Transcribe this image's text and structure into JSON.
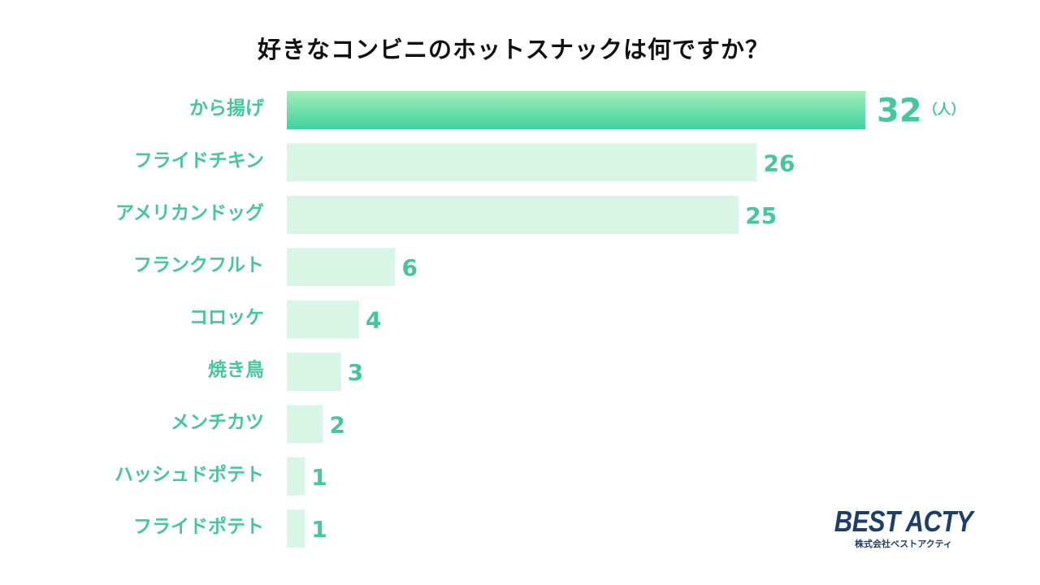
{
  "chart_data": {
    "type": "bar",
    "orientation": "horizontal",
    "title": "好きなコンビニのホットスナックは何ですか？",
    "categories": [
      "から揚げ",
      "フライドチキン",
      "アメリカンドッグ",
      "フランクフルト",
      "コロッケ",
      "焼き鳥",
      "メンチカツ",
      "ハッシュドポテト",
      "フライドポテト"
    ],
    "values": [
      32,
      26,
      25,
      6,
      4,
      3,
      2,
      1,
      1
    ],
    "unit": "（人）",
    "xlim": [
      0,
      32
    ],
    "grid": false,
    "legend": "none"
  },
  "colors": {
    "top_bar_gradient": [
      "#a3efb9",
      "#3fd29e"
    ],
    "bar": "#d7f6e5",
    "category_text": "#45c79b",
    "value_text": "#45c79b",
    "title_text": "#111111",
    "brand_primary": "#1d3e6b"
  },
  "brand": {
    "logo": "BEST ACTY",
    "subtitle": "株式会社ベストアクティ"
  }
}
